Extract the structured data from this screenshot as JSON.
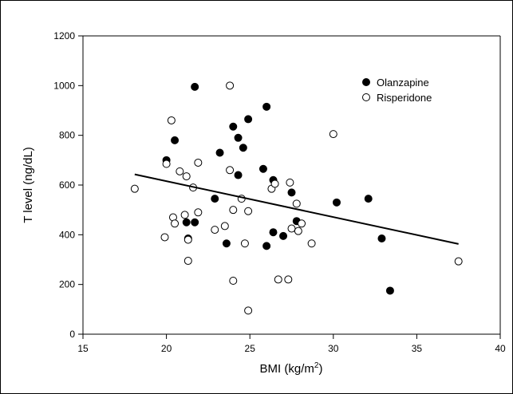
{
  "chart_data": {
    "type": "scatter",
    "title": "",
    "xlabel": "BMI (kg/m",
    "xlabel_sup": "2",
    "xlabel_suffix": ")",
    "ylabel": "T level (ng/dL)",
    "xlim": [
      15,
      40
    ],
    "ylim": [
      0,
      1200
    ],
    "xticks": [
      "15",
      "20",
      "25",
      "30",
      "35",
      "40"
    ],
    "yticks": [
      "0",
      "200",
      "400",
      "600",
      "800",
      "1000",
      "1200"
    ],
    "grid": false,
    "legend_position": "top-right",
    "series": [
      {
        "name": "Olanzapine",
        "marker": "filled-circle",
        "color": "#000000",
        "points": [
          [
            20.0,
            700
          ],
          [
            20.5,
            780
          ],
          [
            21.7,
            995
          ],
          [
            21.2,
            450
          ],
          [
            21.3,
            385
          ],
          [
            21.7,
            450
          ],
          [
            22.9,
            545
          ],
          [
            23.2,
            730
          ],
          [
            23.6,
            365
          ],
          [
            24.0,
            835
          ],
          [
            24.3,
            790
          ],
          [
            24.3,
            640
          ],
          [
            24.6,
            750
          ],
          [
            24.9,
            865
          ],
          [
            25.8,
            665
          ],
          [
            26.0,
            915
          ],
          [
            26.0,
            355
          ],
          [
            26.4,
            620
          ],
          [
            26.4,
            410
          ],
          [
            27.0,
            395
          ],
          [
            27.5,
            570
          ],
          [
            27.8,
            455
          ],
          [
            30.2,
            530
          ],
          [
            32.1,
            545
          ],
          [
            32.9,
            385
          ],
          [
            33.4,
            175
          ]
        ]
      },
      {
        "name": "Risperidone",
        "marker": "open-circle",
        "color": "#000000",
        "points": [
          [
            18.1,
            585
          ],
          [
            19.9,
            390
          ],
          [
            20.0,
            685
          ],
          [
            20.3,
            860
          ],
          [
            20.4,
            470
          ],
          [
            20.5,
            445
          ],
          [
            20.8,
            655
          ],
          [
            21.1,
            480
          ],
          [
            21.2,
            635
          ],
          [
            21.3,
            295
          ],
          [
            21.3,
            380
          ],
          [
            21.6,
            590
          ],
          [
            21.9,
            490
          ],
          [
            21.9,
            690
          ],
          [
            22.9,
            420
          ],
          [
            23.5,
            435
          ],
          [
            23.8,
            1000
          ],
          [
            23.8,
            660
          ],
          [
            24.0,
            500
          ],
          [
            24.0,
            215
          ],
          [
            24.5,
            545
          ],
          [
            24.7,
            365
          ],
          [
            24.9,
            495
          ],
          [
            24.9,
            95
          ],
          [
            26.3,
            585
          ],
          [
            26.5,
            605
          ],
          [
            26.7,
            220
          ],
          [
            27.3,
            220
          ],
          [
            27.4,
            610
          ],
          [
            27.5,
            425
          ],
          [
            27.8,
            525
          ],
          [
            27.9,
            415
          ],
          [
            28.1,
            445
          ],
          [
            28.7,
            365
          ],
          [
            30.0,
            805
          ],
          [
            37.5,
            293
          ]
        ]
      }
    ],
    "regression_line": {
      "x": [
        18.1,
        37.5
      ],
      "y": [
        643,
        363
      ]
    }
  }
}
